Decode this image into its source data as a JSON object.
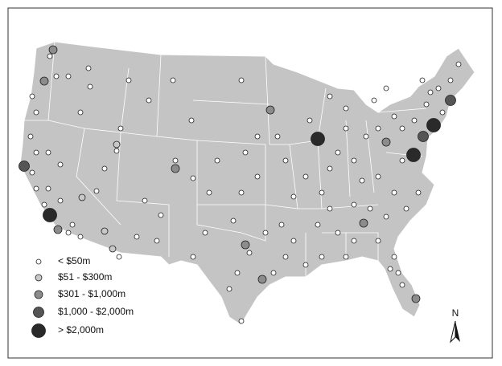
{
  "legend": {
    "items": [
      "< $50m",
      "$51 - $300m",
      "$301 - $1,000m",
      "$1,000 - $2,000m",
      "> $2,000m"
    ]
  },
  "north_label": "N"
}
